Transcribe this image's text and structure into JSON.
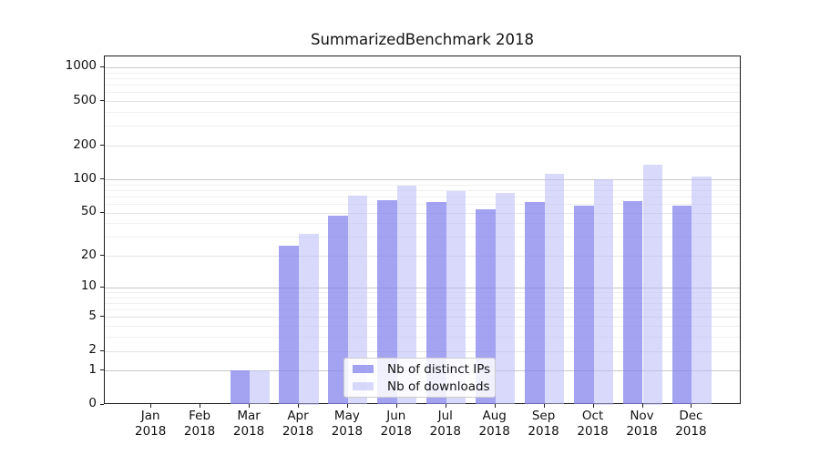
{
  "chart_data": {
    "type": "bar",
    "title": "SummarizedBenchmark 2018",
    "categories": [
      "Jan",
      "Feb",
      "Mar",
      "Apr",
      "May",
      "Jun",
      "Jul",
      "Aug",
      "Sep",
      "Oct",
      "Nov",
      "Dec"
    ],
    "category_year": "2018",
    "series": [
      {
        "name": "Nb of distinct IPs",
        "color": "rgba(132,132,236,0.75)",
        "values": [
          0,
          0,
          1,
          25,
          47,
          65,
          62,
          54,
          62,
          58,
          63,
          58
        ]
      },
      {
        "name": "Nb of downloads",
        "color": "rgba(186,186,247,0.55)",
        "values": [
          0,
          0,
          1,
          32,
          71,
          87,
          78,
          75,
          112,
          100,
          135,
          105
        ]
      }
    ],
    "y_scale": "log1p",
    "y_ticks": [
      1000,
      500,
      200,
      100,
      50,
      20,
      10,
      5,
      2,
      1,
      0
    ],
    "y_major_gridlines": [
      1,
      10,
      100,
      1000
    ],
    "y_mid_gridlines": [
      2,
      5,
      20,
      50,
      200,
      500
    ],
    "y_minor_gridlines": [
      3,
      4,
      6,
      7,
      8,
      9,
      30,
      40,
      60,
      70,
      80,
      90,
      300,
      400,
      600,
      700,
      800,
      900
    ],
    "ylim": [
      0,
      1270
    ],
    "grid": true,
    "legend_position": "lower-center"
  }
}
